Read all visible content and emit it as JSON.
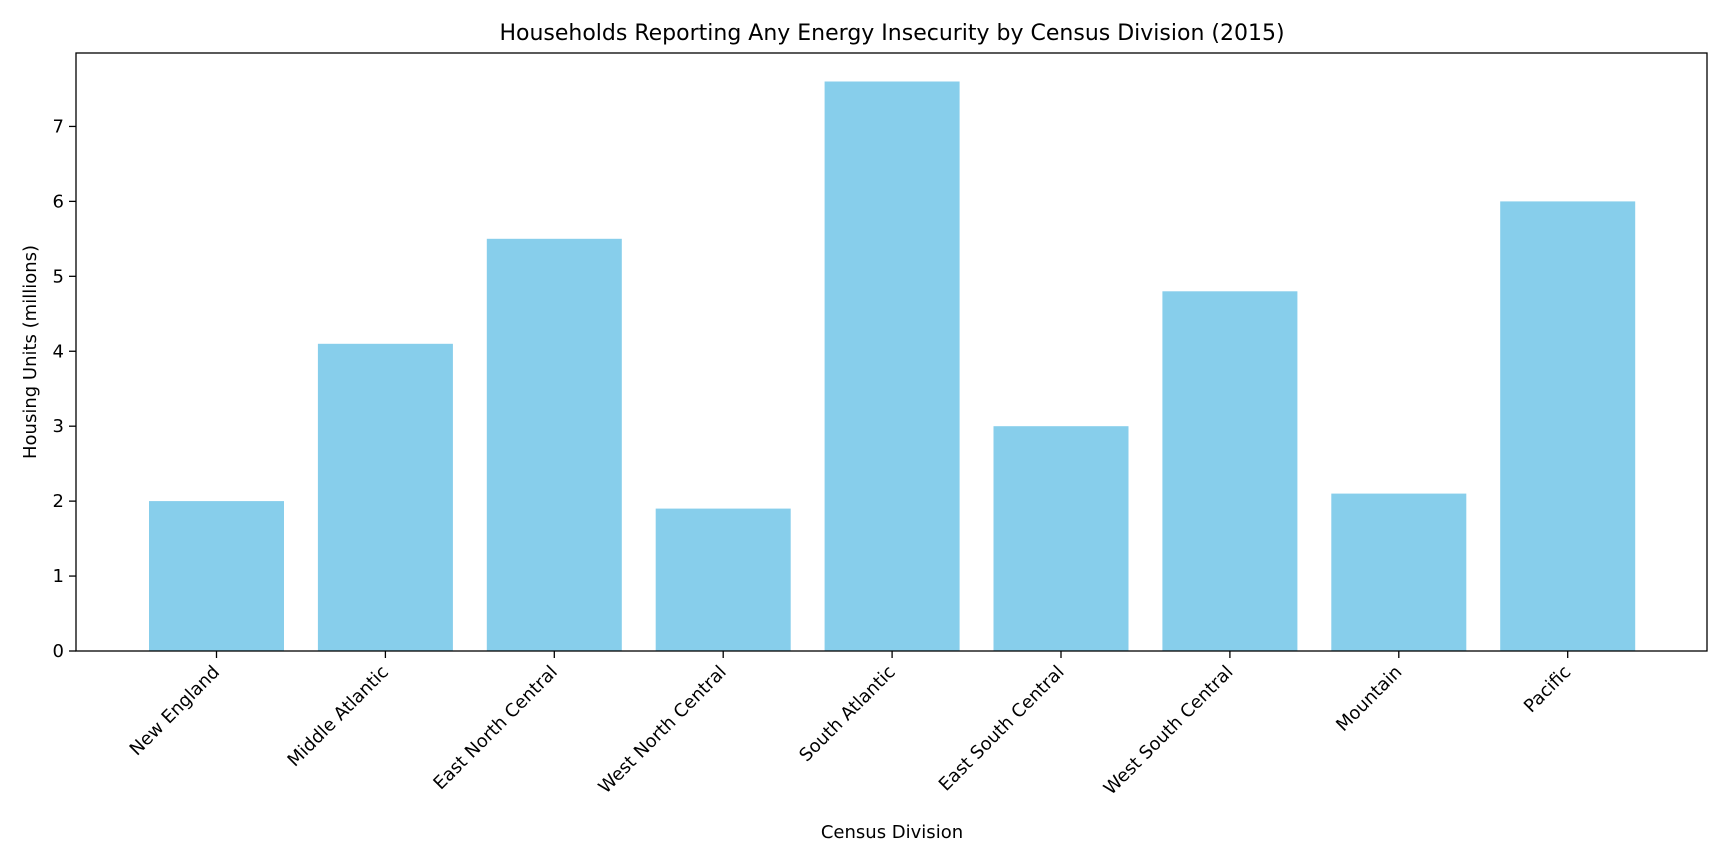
{
  "chart_data": {
    "type": "bar",
    "title": "Households Reporting Any Energy Insecurity by Census Division (2015)",
    "xlabel": "Census Division",
    "ylabel": "Housing Units (millions)",
    "categories": [
      "New England",
      "Middle Atlantic",
      "East North Central",
      "West North Central",
      "South Atlantic",
      "East South Central",
      "West South Central",
      "Mountain",
      "Pacific"
    ],
    "values": [
      2.0,
      4.1,
      5.5,
      1.9,
      7.6,
      3.0,
      4.8,
      2.1,
      6.0
    ],
    "yticks": [
      0,
      1,
      2,
      3,
      4,
      5,
      6,
      7
    ],
    "ylim": [
      0,
      7.98
    ],
    "bar_color": "#87ceeb",
    "grid": false,
    "legend": "none"
  }
}
